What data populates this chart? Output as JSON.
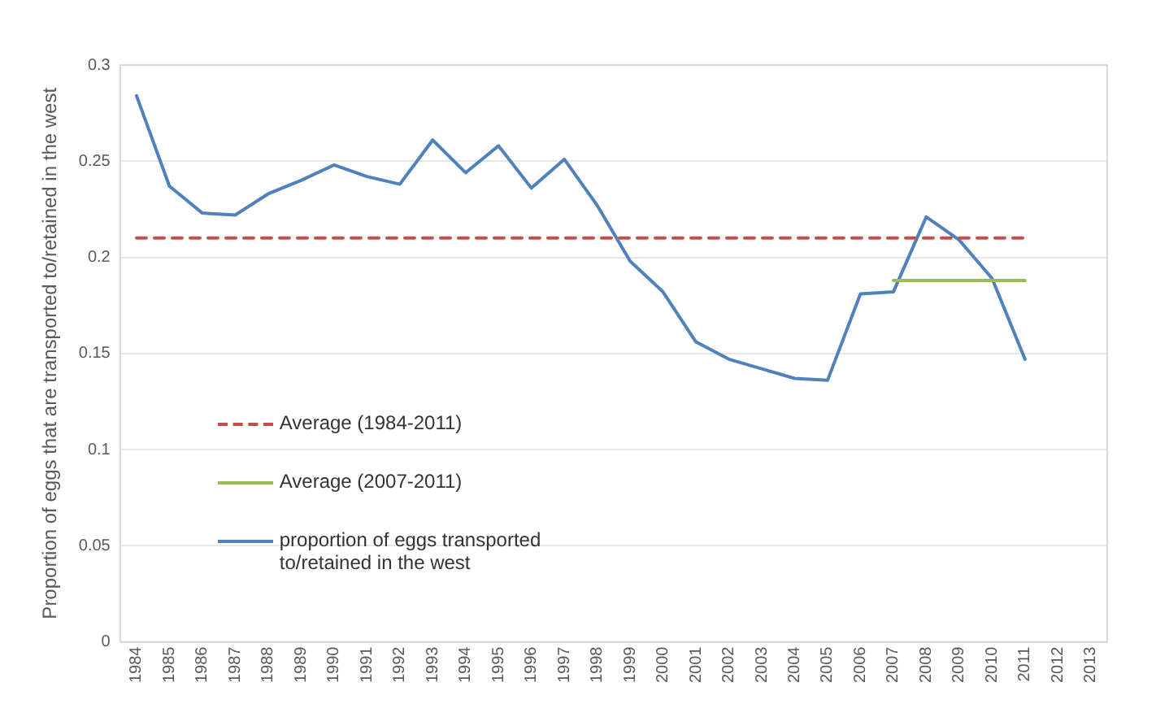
{
  "chart_data": {
    "type": "line",
    "ylabel": "Proportion of eggs that are transported to/retained in the west",
    "categories": [
      "1984",
      "1985",
      "1986",
      "1987",
      "1988",
      "1989",
      "1990",
      "1991",
      "1992",
      "1993",
      "1994",
      "1995",
      "1996",
      "1997",
      "1998",
      "1999",
      "2000",
      "2001",
      "2002",
      "2003",
      "2004",
      "2005",
      "2006",
      "2007",
      "2008",
      "2009",
      "2010",
      "2011",
      "2012",
      "2013"
    ],
    "series": [
      {
        "name": "Average (1984-2011)",
        "color": "#c0504d",
        "line_style": "dashed",
        "values": [
          0.21,
          0.21,
          0.21,
          0.21,
          0.21,
          0.21,
          0.21,
          0.21,
          0.21,
          0.21,
          0.21,
          0.21,
          0.21,
          0.21,
          0.21,
          0.21,
          0.21,
          0.21,
          0.21,
          0.21,
          0.21,
          0.21,
          0.21,
          0.21,
          0.21,
          0.21,
          0.21,
          0.21,
          null,
          null
        ]
      },
      {
        "name": "Average (2007-2011)",
        "color": "#9bbb59",
        "line_style": "solid",
        "values": [
          null,
          null,
          null,
          null,
          null,
          null,
          null,
          null,
          null,
          null,
          null,
          null,
          null,
          null,
          null,
          null,
          null,
          null,
          null,
          null,
          null,
          null,
          null,
          0.188,
          0.188,
          0.188,
          0.188,
          0.188,
          null,
          null
        ]
      },
      {
        "name": "proportion of eggs transported to/retained in the west",
        "color": "#4f81bd",
        "line_style": "solid",
        "values": [
          0.284,
          0.237,
          0.223,
          0.222,
          0.233,
          0.24,
          0.248,
          0.242,
          0.238,
          0.261,
          0.244,
          0.258,
          0.236,
          0.251,
          0.227,
          0.198,
          0.182,
          0.156,
          0.147,
          0.142,
          0.137,
          0.136,
          0.181,
          0.182,
          0.221,
          0.209,
          0.189,
          0.147,
          null,
          null
        ]
      }
    ],
    "ylim": [
      0,
      0.3
    ],
    "yticks": [
      0,
      0.05,
      0.1,
      0.15,
      0.2,
      0.25,
      0.3
    ],
    "grid": "y",
    "legend": "bottom left",
    "marker": "none"
  }
}
